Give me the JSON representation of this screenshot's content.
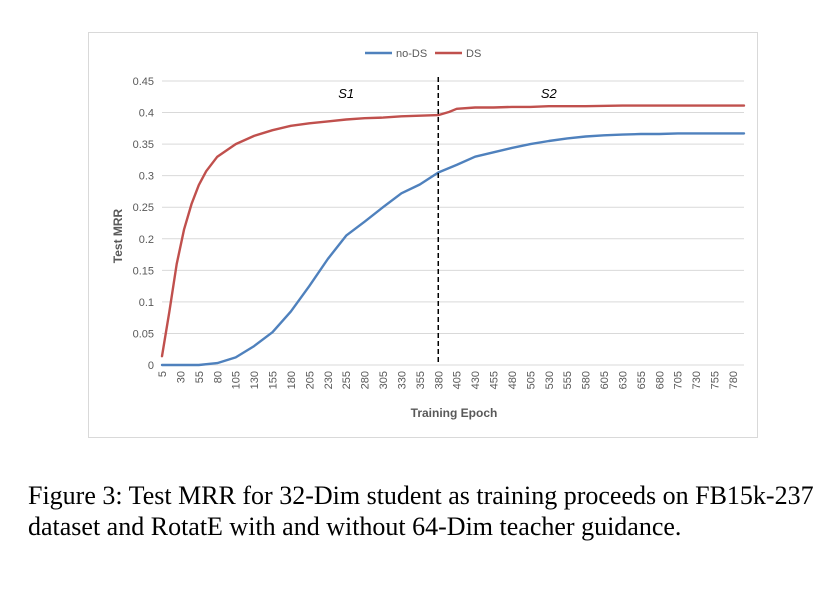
{
  "chart_data": {
    "type": "line",
    "xlabel": "Training Epoch",
    "ylabel": "Test MRR",
    "ylim": [
      0,
      0.45
    ],
    "yticks": [
      "0",
      "0.05",
      "0.1",
      "0.15",
      "0.2",
      "0.25",
      "0.3",
      "0.35",
      "0.4",
      "0.45"
    ],
    "x_tick_labels": [
      "5",
      "30",
      "55",
      "80",
      "105",
      "130",
      "155",
      "180",
      "205",
      "230",
      "255",
      "280",
      "305",
      "330",
      "355",
      "380",
      "405",
      "430",
      "455",
      "480",
      "505",
      "530",
      "555",
      "580",
      "605",
      "630",
      "655",
      "680",
      "705",
      "730",
      "755",
      "780"
    ],
    "grid": "horizontal",
    "legend_position": "top",
    "annotations": [
      {
        "text": "S1",
        "x": 255,
        "y": 0.423
      },
      {
        "text": "S2",
        "x": 530,
        "y": 0.423
      }
    ],
    "divider_x": 380,
    "series": [
      {
        "name": "no-DS",
        "color": "#4f81bd",
        "points": [
          [
            5,
            0
          ],
          [
            30,
            0
          ],
          [
            55,
            0
          ],
          [
            80,
            0.003
          ],
          [
            105,
            0.012
          ],
          [
            130,
            0.03
          ],
          [
            155,
            0.052
          ],
          [
            180,
            0.085
          ],
          [
            205,
            0.125
          ],
          [
            230,
            0.168
          ],
          [
            255,
            0.205
          ],
          [
            280,
            0.227
          ],
          [
            305,
            0.25
          ],
          [
            330,
            0.272
          ],
          [
            355,
            0.286
          ],
          [
            380,
            0.305
          ],
          [
            405,
            0.317
          ],
          [
            430,
            0.33
          ],
          [
            455,
            0.337
          ],
          [
            480,
            0.344
          ],
          [
            505,
            0.35
          ],
          [
            530,
            0.355
          ],
          [
            555,
            0.359
          ],
          [
            580,
            0.362
          ],
          [
            605,
            0.364
          ],
          [
            630,
            0.365
          ],
          [
            655,
            0.366
          ],
          [
            680,
            0.366
          ],
          [
            705,
            0.367
          ],
          [
            730,
            0.367
          ],
          [
            755,
            0.367
          ],
          [
            780,
            0.367
          ],
          [
            795,
            0.367
          ]
        ]
      },
      {
        "name": "DS",
        "color": "#c0504d",
        "points": [
          [
            5,
            0.014
          ],
          [
            15,
            0.085
          ],
          [
            25,
            0.16
          ],
          [
            35,
            0.215
          ],
          [
            45,
            0.255
          ],
          [
            55,
            0.285
          ],
          [
            65,
            0.307
          ],
          [
            80,
            0.33
          ],
          [
            105,
            0.35
          ],
          [
            130,
            0.363
          ],
          [
            155,
            0.372
          ],
          [
            180,
            0.379
          ],
          [
            205,
            0.383
          ],
          [
            230,
            0.386
          ],
          [
            255,
            0.389
          ],
          [
            280,
            0.391
          ],
          [
            305,
            0.392
          ],
          [
            330,
            0.394
          ],
          [
            355,
            0.395
          ],
          [
            380,
            0.396
          ],
          [
            395,
            0.401
          ],
          [
            405,
            0.406
          ],
          [
            430,
            0.408
          ],
          [
            455,
            0.408
          ],
          [
            480,
            0.409
          ],
          [
            505,
            0.409
          ],
          [
            530,
            0.41
          ],
          [
            555,
            0.41
          ],
          [
            580,
            0.41
          ],
          [
            630,
            0.411
          ],
          [
            680,
            0.411
          ],
          [
            730,
            0.411
          ],
          [
            795,
            0.411
          ]
        ]
      }
    ]
  },
  "caption": "Figure 3: Test MRR for 32-Dim student as training proceeds on FB15k-237 dataset and RotatE with and without 64-Dim teacher guidance."
}
